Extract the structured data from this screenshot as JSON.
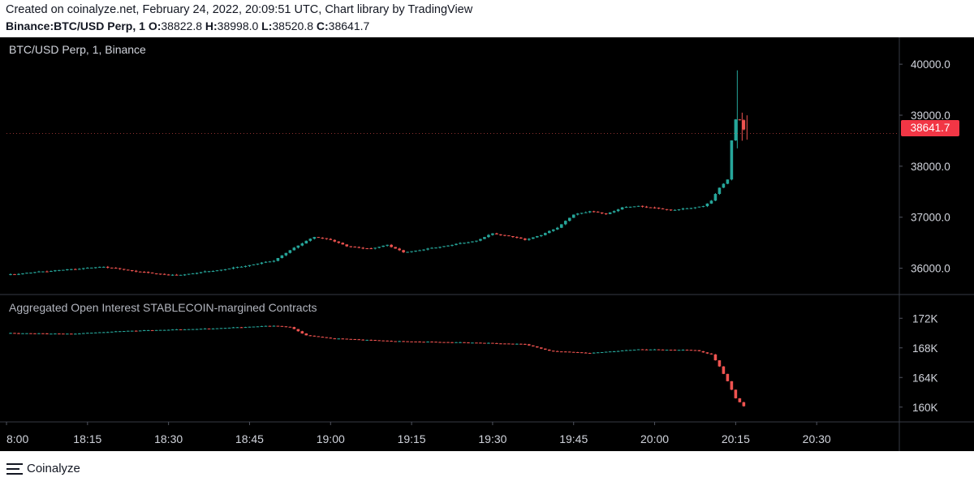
{
  "header": {
    "created_line": "Created on coinalyze.net, February 24, 2022, 20:09:51 UTC, Chart library by TradingView",
    "symbol": "Binance:BTC/USD Perp, 1",
    "o_label": "O:",
    "o_value": "38822.8",
    "h_label": "H:",
    "h_value": "38998.0",
    "l_label": "L:",
    "l_value": "38520.8",
    "c_label": "C:",
    "c_value": "38641.7"
  },
  "footer": {
    "brand": "Coinalyze",
    "icon": "menu-lines-icon"
  },
  "colors": {
    "up": "#26a69a",
    "down": "#ef5350",
    "background": "#000000",
    "grid": "#2a2e39",
    "text": "#d1d4dc"
  },
  "chart_data": [
    {
      "type": "candlestick",
      "title": "BTC/USD Perp, 1, Binance",
      "x_ticks": [
        "8:00",
        "18:15",
        "18:30",
        "18:45",
        "19:00",
        "19:15",
        "19:30",
        "19:45",
        "20:00",
        "20:15",
        "20:30"
      ],
      "y_ticks": [
        "36000.0",
        "37000.0",
        "38000.0",
        "39000.0",
        "40000.0"
      ],
      "ylim": [
        35500,
        40400
      ],
      "last_price": "38641.7",
      "path_close": [
        [
          0,
          35870
        ],
        [
          4,
          35930
        ],
        [
          8,
          35980
        ],
        [
          12,
          36030
        ],
        [
          15,
          35960
        ],
        [
          18,
          35900
        ],
        [
          21,
          35860
        ],
        [
          24,
          35920
        ],
        [
          27,
          35980
        ],
        [
          30,
          36060
        ],
        [
          33,
          36150
        ],
        [
          35,
          36350
        ],
        [
          37,
          36540
        ],
        [
          38,
          36610
        ],
        [
          40,
          36560
        ],
        [
          42,
          36430
        ],
        [
          45,
          36380
        ],
        [
          47,
          36460
        ],
        [
          49,
          36310
        ],
        [
          52,
          36380
        ],
        [
          55,
          36460
        ],
        [
          58,
          36540
        ],
        [
          60,
          36680
        ],
        [
          62,
          36630
        ],
        [
          64,
          36560
        ],
        [
          66,
          36650
        ],
        [
          68,
          36800
        ],
        [
          70,
          37050
        ],
        [
          72,
          37120
        ],
        [
          74,
          37060
        ],
        [
          76,
          37190
        ],
        [
          78,
          37220
        ],
        [
          80,
          37180
        ],
        [
          82,
          37140
        ],
        [
          84,
          37170
        ],
        [
          86,
          37220
        ],
        [
          87,
          37320
        ],
        [
          88,
          37580
        ],
        [
          89,
          37740
        ],
        [
          89.6,
          38660
        ],
        [
          90.2,
          39050
        ],
        [
          90.8,
          38750
        ],
        [
          91.4,
          38640
        ]
      ],
      "spikes": [
        [
          90.2,
          39880,
          38350
        ],
        [
          90.8,
          39050,
          38500
        ],
        [
          91.4,
          38998,
          38520
        ]
      ]
    },
    {
      "type": "bar",
      "title": "Aggregated Open Interest STABLECOIN-margined Contracts",
      "y_ticks": [
        "160K",
        "164K",
        "168K",
        "172K"
      ],
      "ylim": [
        158000,
        174000
      ],
      "path_close": [
        [
          0,
          170000
        ],
        [
          8,
          169900
        ],
        [
          15,
          170300
        ],
        [
          25,
          170600
        ],
        [
          33,
          171000
        ],
        [
          35,
          170800
        ],
        [
          37,
          169700
        ],
        [
          40,
          169300
        ],
        [
          48,
          168900
        ],
        [
          58,
          168700
        ],
        [
          64,
          168500
        ],
        [
          67,
          167600
        ],
        [
          72,
          167300
        ],
        [
          78,
          167800
        ],
        [
          85,
          167700
        ],
        [
          87,
          167100
        ],
        [
          88,
          165500
        ],
        [
          89,
          163500
        ],
        [
          90,
          161200
        ],
        [
          91,
          160100
        ]
      ]
    }
  ]
}
